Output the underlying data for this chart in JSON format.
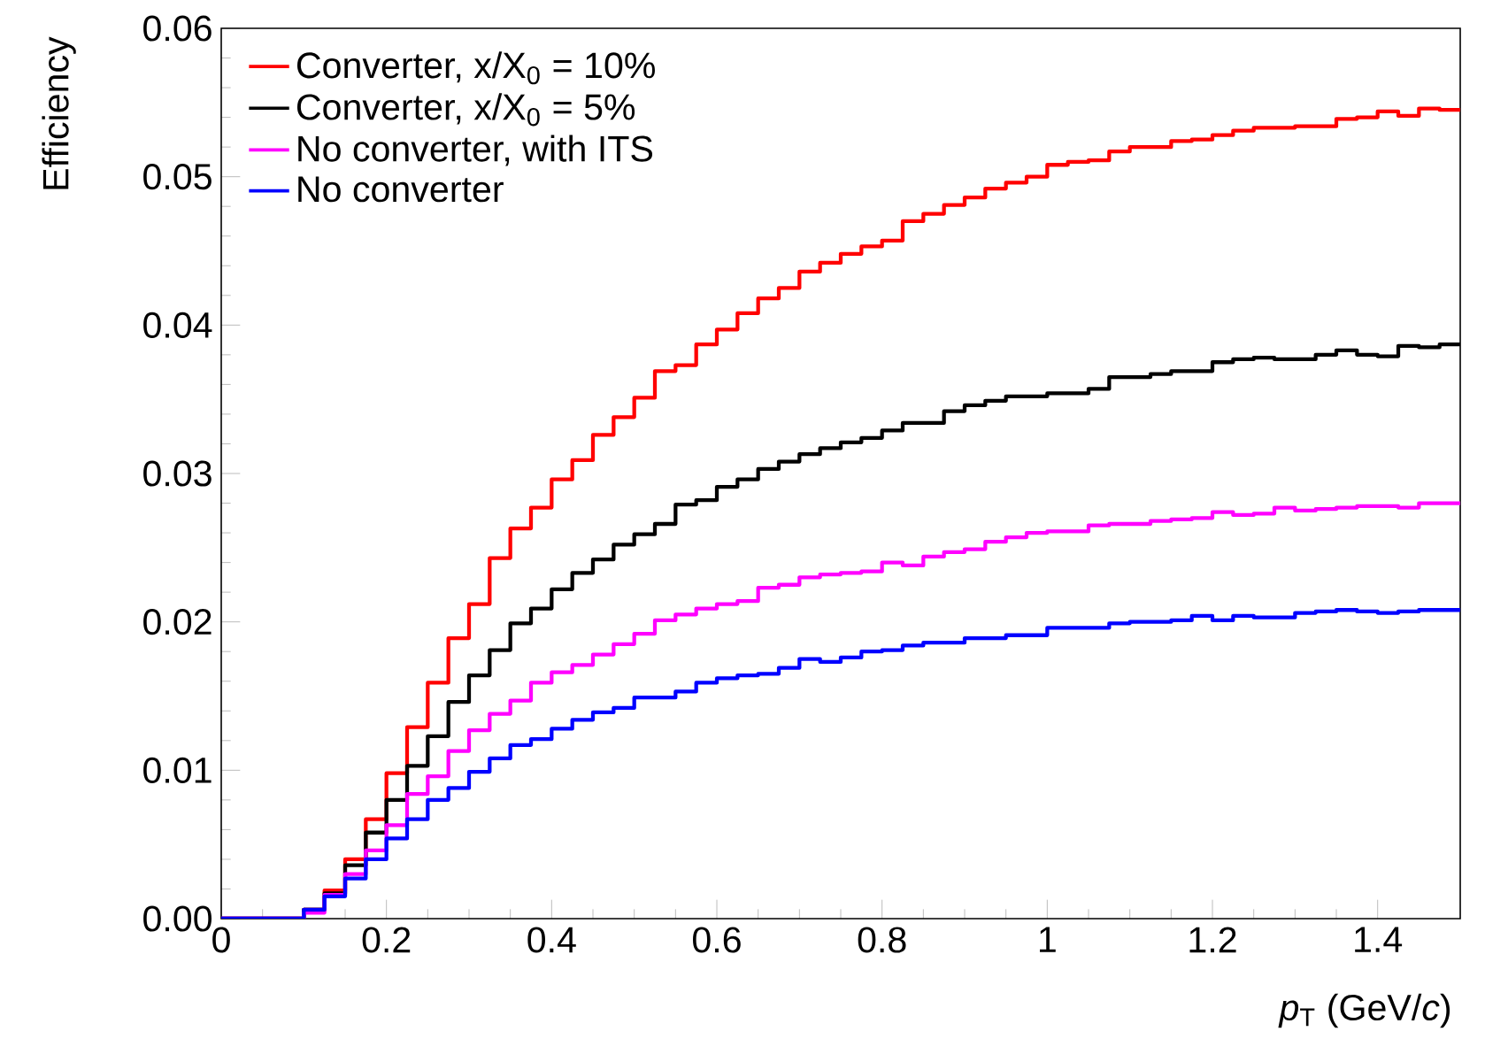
{
  "chart_data": {
    "type": "histogram",
    "xlabel": "*p*$_{T}$ (GeV/*c*)",
    "ylabel": "Efficiency",
    "bins": [
      0,
      0.025,
      0.05,
      0.075,
      0.1,
      0.125,
      0.15,
      0.175,
      0.2,
      0.225,
      0.25,
      0.275,
      0.3,
      0.325,
      0.35,
      0.375,
      0.4,
      0.425,
      0.45,
      0.475,
      0.5,
      0.525,
      0.55,
      0.575,
      0.6,
      0.625,
      0.65,
      0.675,
      0.7,
      0.725,
      0.75,
      0.775,
      0.8,
      0.825,
      0.85,
      0.875,
      0.9,
      0.925,
      0.95,
      0.975,
      1,
      1.025,
      1.05,
      1.075,
      1.1,
      1.125,
      1.15,
      1.175,
      1.2,
      1.225,
      1.25,
      1.275,
      1.3,
      1.325,
      1.35,
      1.375,
      1.4,
      1.425,
      1.45,
      1.475,
      1.5
    ],
    "series": [
      {
        "name": "Converter, x/X$_{0}$ = 10%",
        "color": "#ff0000",
        "values": [
          0,
          0,
          0,
          0,
          0.0006,
          0.0019,
          0.004,
          0.0067,
          0.0098,
          0.0129,
          0.0159,
          0.0189,
          0.0212,
          0.0243,
          0.0263,
          0.0277,
          0.0296,
          0.0309,
          0.0326,
          0.0338,
          0.0351,
          0.0369,
          0.0373,
          0.0387,
          0.0397,
          0.0408,
          0.0418,
          0.0425,
          0.0436,
          0.0442,
          0.0448,
          0.0453,
          0.0457,
          0.047,
          0.0475,
          0.0481,
          0.0486,
          0.0492,
          0.0496,
          0.05,
          0.0508,
          0.051,
          0.0511,
          0.0517,
          0.052,
          0.052,
          0.0524,
          0.0525,
          0.0528,
          0.0531,
          0.0533,
          0.0533,
          0.0534,
          0.0534,
          0.0539,
          0.054,
          0.0544,
          0.0541,
          0.0546,
          0.0545
        ]
      },
      {
        "name": "Converter, x/X$_{0}$ = 5%",
        "color": "#000000",
        "values": [
          0,
          0,
          0,
          0,
          0.0006,
          0.0017,
          0.0036,
          0.0058,
          0.008,
          0.0103,
          0.0123,
          0.0146,
          0.0164,
          0.0181,
          0.0199,
          0.0209,
          0.0222,
          0.0233,
          0.0242,
          0.0252,
          0.0259,
          0.0266,
          0.0279,
          0.0282,
          0.0291,
          0.0296,
          0.0303,
          0.0308,
          0.0313,
          0.0317,
          0.0321,
          0.0324,
          0.0329,
          0.0334,
          0.0334,
          0.0342,
          0.0346,
          0.0349,
          0.0352,
          0.0352,
          0.0354,
          0.0354,
          0.0357,
          0.0365,
          0.0365,
          0.0367,
          0.0369,
          0.0369,
          0.0375,
          0.0377,
          0.0378,
          0.0377,
          0.0377,
          0.038,
          0.0383,
          0.038,
          0.0379,
          0.0386,
          0.0385,
          0.0387
        ]
      },
      {
        "name": "No converter, with ITS",
        "color": "#ff00ff",
        "values": [
          0,
          0,
          0,
          0,
          0.0004,
          0.0016,
          0.003,
          0.0046,
          0.0063,
          0.0084,
          0.0096,
          0.0113,
          0.0127,
          0.0138,
          0.0147,
          0.0159,
          0.0166,
          0.0171,
          0.0178,
          0.0185,
          0.0192,
          0.0201,
          0.0205,
          0.0209,
          0.0212,
          0.0214,
          0.0223,
          0.0225,
          0.023,
          0.0232,
          0.0233,
          0.0234,
          0.024,
          0.0238,
          0.0244,
          0.0247,
          0.0249,
          0.0254,
          0.0257,
          0.026,
          0.0261,
          0.0261,
          0.0265,
          0.0266,
          0.0266,
          0.0268,
          0.0269,
          0.027,
          0.0274,
          0.0272,
          0.0273,
          0.0277,
          0.0275,
          0.0276,
          0.0277,
          0.0278,
          0.0278,
          0.0277,
          0.028,
          0.028
        ]
      },
      {
        "name": "No converter",
        "color": "#0000ff",
        "values": [
          0,
          0,
          0,
          0,
          0.0006,
          0.0015,
          0.0027,
          0.004,
          0.0054,
          0.0067,
          0.008,
          0.0088,
          0.0099,
          0.0108,
          0.0117,
          0.0121,
          0.0128,
          0.0134,
          0.0139,
          0.0142,
          0.0149,
          0.0149,
          0.0153,
          0.0159,
          0.0162,
          0.0164,
          0.0165,
          0.0169,
          0.0175,
          0.0173,
          0.0176,
          0.018,
          0.0181,
          0.0184,
          0.0186,
          0.0186,
          0.0189,
          0.0189,
          0.0191,
          0.0191,
          0.0196,
          0.0196,
          0.0196,
          0.0199,
          0.02,
          0.02,
          0.0201,
          0.0204,
          0.0201,
          0.0204,
          0.0203,
          0.0203,
          0.0206,
          0.0207,
          0.0208,
          0.0207,
          0.0206,
          0.0207,
          0.0208,
          0.0208
        ]
      }
    ],
    "xlim": [
      0,
      1.5
    ],
    "ylim": [
      0,
      0.06
    ],
    "xticks": [
      0,
      0.2,
      0.4,
      0.6,
      0.8,
      1,
      1.2,
      1.4
    ],
    "yticks": [
      {
        "value": 0,
        "label": "0.00"
      },
      {
        "value": 0.01,
        "label": "0.01"
      },
      {
        "value": 0.02,
        "label": "0.02"
      },
      {
        "value": 0.03,
        "label": "0.03"
      },
      {
        "value": 0.04,
        "label": "0.04"
      },
      {
        "value": 0.05,
        "label": "0.05"
      },
      {
        "value": 0.06,
        "label": "0.06"
      }
    ],
    "legend": "top left",
    "grid": false
  }
}
